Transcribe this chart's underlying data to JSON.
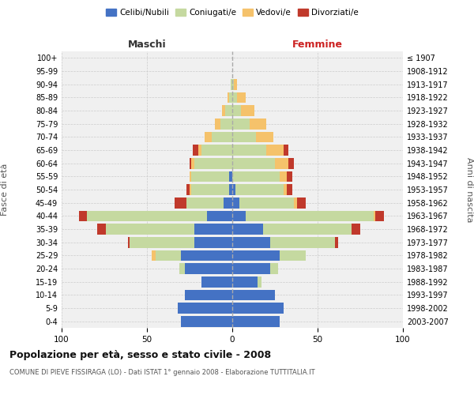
{
  "age_groups": [
    "0-4",
    "5-9",
    "10-14",
    "15-19",
    "20-24",
    "25-29",
    "30-34",
    "35-39",
    "40-44",
    "45-49",
    "50-54",
    "55-59",
    "60-64",
    "65-69",
    "70-74",
    "75-79",
    "80-84",
    "85-89",
    "90-94",
    "95-99",
    "100+"
  ],
  "birth_years": [
    "2003-2007",
    "1998-2002",
    "1993-1997",
    "1988-1992",
    "1983-1987",
    "1978-1982",
    "1973-1977",
    "1968-1972",
    "1963-1967",
    "1958-1962",
    "1953-1957",
    "1948-1952",
    "1943-1947",
    "1938-1942",
    "1933-1937",
    "1928-1932",
    "1923-1927",
    "1918-1922",
    "1913-1917",
    "1908-1912",
    "≤ 1907"
  ],
  "male_celibe": [
    30,
    32,
    28,
    18,
    28,
    30,
    22,
    22,
    15,
    5,
    2,
    2,
    0,
    0,
    0,
    0,
    0,
    0,
    0,
    0,
    0
  ],
  "male_coniugato": [
    0,
    0,
    0,
    0,
    3,
    15,
    38,
    52,
    70,
    22,
    22,
    22,
    22,
    18,
    12,
    7,
    4,
    2,
    1,
    0,
    0
  ],
  "male_vedovo": [
    0,
    0,
    0,
    0,
    0,
    2,
    0,
    0,
    0,
    0,
    1,
    1,
    2,
    2,
    4,
    3,
    2,
    1,
    0,
    0,
    0
  ],
  "male_divorziato": [
    0,
    0,
    0,
    0,
    0,
    0,
    1,
    5,
    5,
    7,
    2,
    0,
    1,
    3,
    0,
    0,
    0,
    0,
    0,
    0,
    0
  ],
  "female_nubile": [
    28,
    30,
    25,
    15,
    22,
    28,
    22,
    18,
    8,
    4,
    2,
    0,
    0,
    0,
    0,
    0,
    0,
    0,
    0,
    0,
    0
  ],
  "female_coniugata": [
    0,
    0,
    0,
    2,
    5,
    15,
    38,
    52,
    75,
    32,
    28,
    28,
    25,
    20,
    14,
    10,
    5,
    3,
    1,
    0,
    0
  ],
  "female_vedova": [
    0,
    0,
    0,
    0,
    0,
    0,
    0,
    0,
    1,
    2,
    2,
    4,
    8,
    10,
    10,
    10,
    8,
    5,
    2,
    0,
    0
  ],
  "female_divorziata": [
    0,
    0,
    0,
    0,
    0,
    0,
    2,
    5,
    5,
    5,
    3,
    3,
    3,
    3,
    0,
    0,
    0,
    0,
    0,
    0,
    0
  ],
  "colors": {
    "celibe": "#4472c4",
    "coniugato": "#c5d9a0",
    "vedovo": "#f5c26b",
    "divorziato": "#c0392b"
  },
  "title": "Popolazione per età, sesso e stato civile - 2008",
  "subtitle": "COMUNE DI PIEVE FISSIRAGA (LO) - Dati ISTAT 1° gennaio 2008 - Elaborazione TUTTITALIA.IT",
  "xlabel_left": "Maschi",
  "xlabel_right": "Femmine",
  "ylabel_left": "Fasce di età",
  "ylabel_right": "Anni di nascita",
  "xlim": 100,
  "background_color": "#ffffff",
  "grid_color": "#cccccc"
}
